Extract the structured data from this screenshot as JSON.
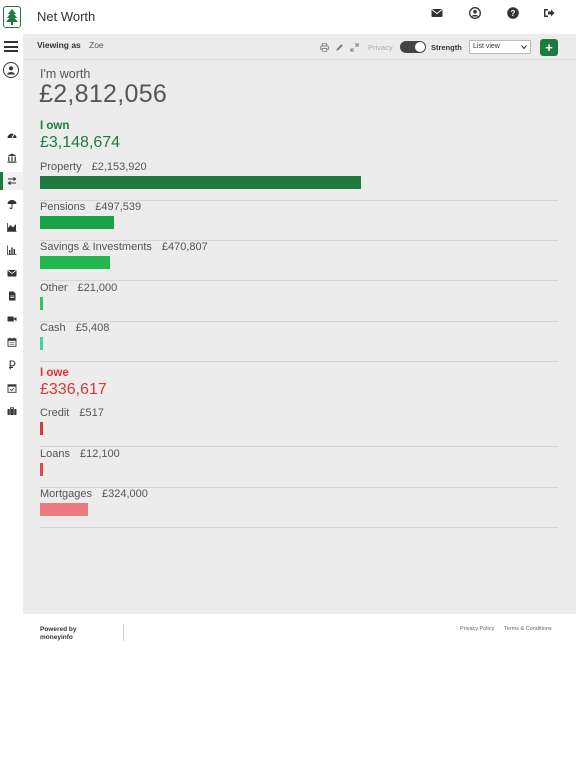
{
  "app": {
    "title": "Net Worth"
  },
  "header_icons": [
    "envelope-icon",
    "user-circle-icon",
    "help-icon",
    "sign-out-icon"
  ],
  "subbar": {
    "viewing_label": "Viewing as",
    "viewing_name": "Zoe",
    "privacy_label": "Privacy",
    "privacy_toggle_on": true,
    "strength_label": "Strength",
    "view_select_value": "List view",
    "add_label": "+"
  },
  "summary": {
    "worth_label": "I'm worth",
    "worth_value": "£2,812,056"
  },
  "own": {
    "label": "I own",
    "total": "£3,148,674",
    "items": [
      {
        "name": "Property",
        "amount": "£2,153,920",
        "value": 2153920,
        "color": "#1e7a3e"
      },
      {
        "name": "Pensions",
        "amount": "£497,539",
        "value": 497539,
        "color": "#18a349"
      },
      {
        "name": "Savings & Investments",
        "amount": "£470,807",
        "value": 470807,
        "color": "#21b94f"
      },
      {
        "name": "Other",
        "amount": "£21,000",
        "value": 21000,
        "color": "#27c95a"
      },
      {
        "name": "Cash",
        "amount": "£5,408",
        "value": 5408,
        "color": "#3ad89a"
      }
    ]
  },
  "owe": {
    "label": "I owe",
    "total": "£336,617",
    "items": [
      {
        "name": "Credit",
        "amount": "£517",
        "value": 517,
        "color": "#d9383a"
      },
      {
        "name": "Loans",
        "amount": "£12,100",
        "value": 12100,
        "color": "#e0474c"
      },
      {
        "name": "Mortgages",
        "amount": "£324,000",
        "value": 324000,
        "color": "#ec7c7f"
      }
    ]
  },
  "sidebar_icons": [
    "dashboard-icon",
    "bank-icon",
    "transfer-icon",
    "umbrella-icon",
    "area-chart-icon",
    "bar-chart-icon",
    "envelope-icon",
    "document-icon",
    "video-icon",
    "calendar-icon",
    "currency-icon",
    "calendar-check-icon",
    "briefcase-icon"
  ],
  "footer": {
    "powered_line1": "Powered by",
    "powered_line2": "moneyinfo",
    "privacy_link": "Privacy Policy",
    "terms_link": "Terms & Conditions"
  },
  "colors": {
    "brand": "#1e7a3e",
    "debt": "#d9383a",
    "background": "#ececec"
  }
}
